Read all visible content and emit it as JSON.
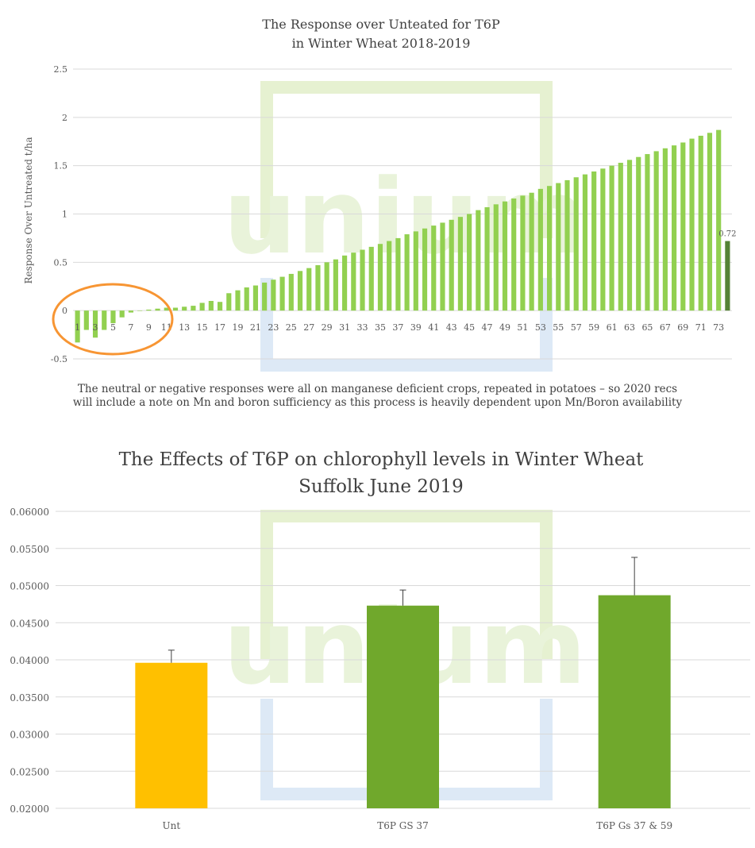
{
  "chart_data": [
    {
      "type": "bar",
      "title": "The Response over Unteated for T6P",
      "subtitle": "in Winter Wheat 2018-2019",
      "ylabel": "Response Over Untreated t/ha",
      "xlabel": "",
      "ylim": [
        -0.5,
        2.5
      ],
      "yticks": [
        -0.5,
        0,
        0.5,
        1,
        1.5,
        2,
        2.5
      ],
      "grid": true,
      "x": [
        1,
        2,
        3,
        4,
        5,
        6,
        7,
        8,
        9,
        10,
        11,
        12,
        13,
        14,
        15,
        16,
        17,
        18,
        19,
        20,
        21,
        22,
        23,
        24,
        25,
        26,
        27,
        28,
        29,
        30,
        31,
        32,
        33,
        34,
        35,
        36,
        37,
        38,
        39,
        40,
        41,
        42,
        43,
        44,
        45,
        46,
        47,
        48,
        49,
        50,
        51,
        52,
        53,
        54,
        55,
        56,
        57,
        58,
        59,
        60,
        61,
        62,
        63,
        64,
        65,
        66,
        67,
        68,
        69,
        70,
        71,
        72,
        73,
        74
      ],
      "xtick_labels": [
        "1",
        "",
        "3",
        "",
        "5",
        "",
        "7",
        "",
        "9",
        "",
        "11",
        "",
        "13",
        "",
        "15",
        "",
        "17",
        "",
        "19",
        "",
        "21",
        "",
        "23",
        "",
        "25",
        "",
        "27",
        "",
        "29",
        "",
        "31",
        "",
        "33",
        "",
        "35",
        "",
        "37",
        "",
        "39",
        "",
        "41",
        "",
        "43",
        "",
        "45",
        "",
        "47",
        "",
        "49",
        "",
        "51",
        "",
        "53",
        "",
        "55",
        "",
        "57",
        "",
        "59",
        "",
        "61",
        "",
        "63",
        "",
        "65",
        "",
        "67",
        "",
        "69",
        "",
        "71",
        "",
        "73",
        ""
      ],
      "values": [
        -0.33,
        -0.2,
        -0.28,
        -0.2,
        -0.13,
        -0.07,
        -0.02,
        0,
        0.01,
        0.02,
        0.03,
        0.03,
        0.04,
        0.05,
        0.08,
        0.1,
        0.09,
        0.18,
        0.21,
        0.24,
        0.26,
        0.29,
        0.32,
        0.35,
        0.38,
        0.41,
        0.44,
        0.47,
        0.5,
        0.53,
        0.57,
        0.6,
        0.63,
        0.66,
        0.69,
        0.72,
        0.75,
        0.79,
        0.82,
        0.85,
        0.88,
        0.91,
        0.94,
        0.97,
        1.0,
        1.04,
        1.07,
        1.1,
        1.13,
        1.16,
        1.19,
        1.22,
        1.26,
        1.29,
        1.32,
        1.35,
        1.38,
        1.41,
        1.44,
        1.47,
        1.5,
        1.53,
        1.56,
        1.59,
        1.62,
        1.65,
        1.68,
        1.71,
        1.74,
        1.78,
        1.81,
        1.84,
        1.87,
        0.72
      ],
      "colors": {
        "bar": "#92d050",
        "highlight": "#548235",
        "annotation": "#f79533",
        "grid": "#d9d9d9"
      },
      "highlight_index": 73,
      "data_labels": [
        {
          "index": 73,
          "text": "0.72"
        }
      ]
    },
    {
      "type": "bar",
      "title": "The Effects of T6P on chlorophyll levels in Winter Wheat",
      "subtitle": "Suffolk June 2019",
      "xlabel": "",
      "ylabel": "",
      "ylim": [
        0.02,
        0.06
      ],
      "yticks": [
        "0.02000",
        "0.02500",
        "0.03000",
        "0.03500",
        "0.04000",
        "0.04500",
        "0.05000",
        "0.05500",
        "0.06000"
      ],
      "grid": true,
      "categories": [
        "Unt",
        "T6P GS 37",
        "T6P Gs 37 & 59"
      ],
      "values": [
        0.0396,
        0.0473,
        0.0487
      ],
      "error_upper": [
        0.0413,
        0.0494,
        0.0538
      ],
      "colors": {
        "bars": [
          "#ffc000",
          "#70a82c",
          "#70a82c"
        ],
        "error": "#404040",
        "grid": "#d9d9d9"
      }
    }
  ],
  "caption": {
    "line1": "The neutral or negative responses were all on manganese deficient crops, repeated in potatoes – so 2020 recs",
    "line2": "will include a note on Mn and boron sufficiency as this process is heavily dependent upon Mn/Boron availability"
  },
  "watermark": {
    "text": "unium",
    "color_green": "#e3efcb",
    "color_blue": "#deeaf7"
  }
}
